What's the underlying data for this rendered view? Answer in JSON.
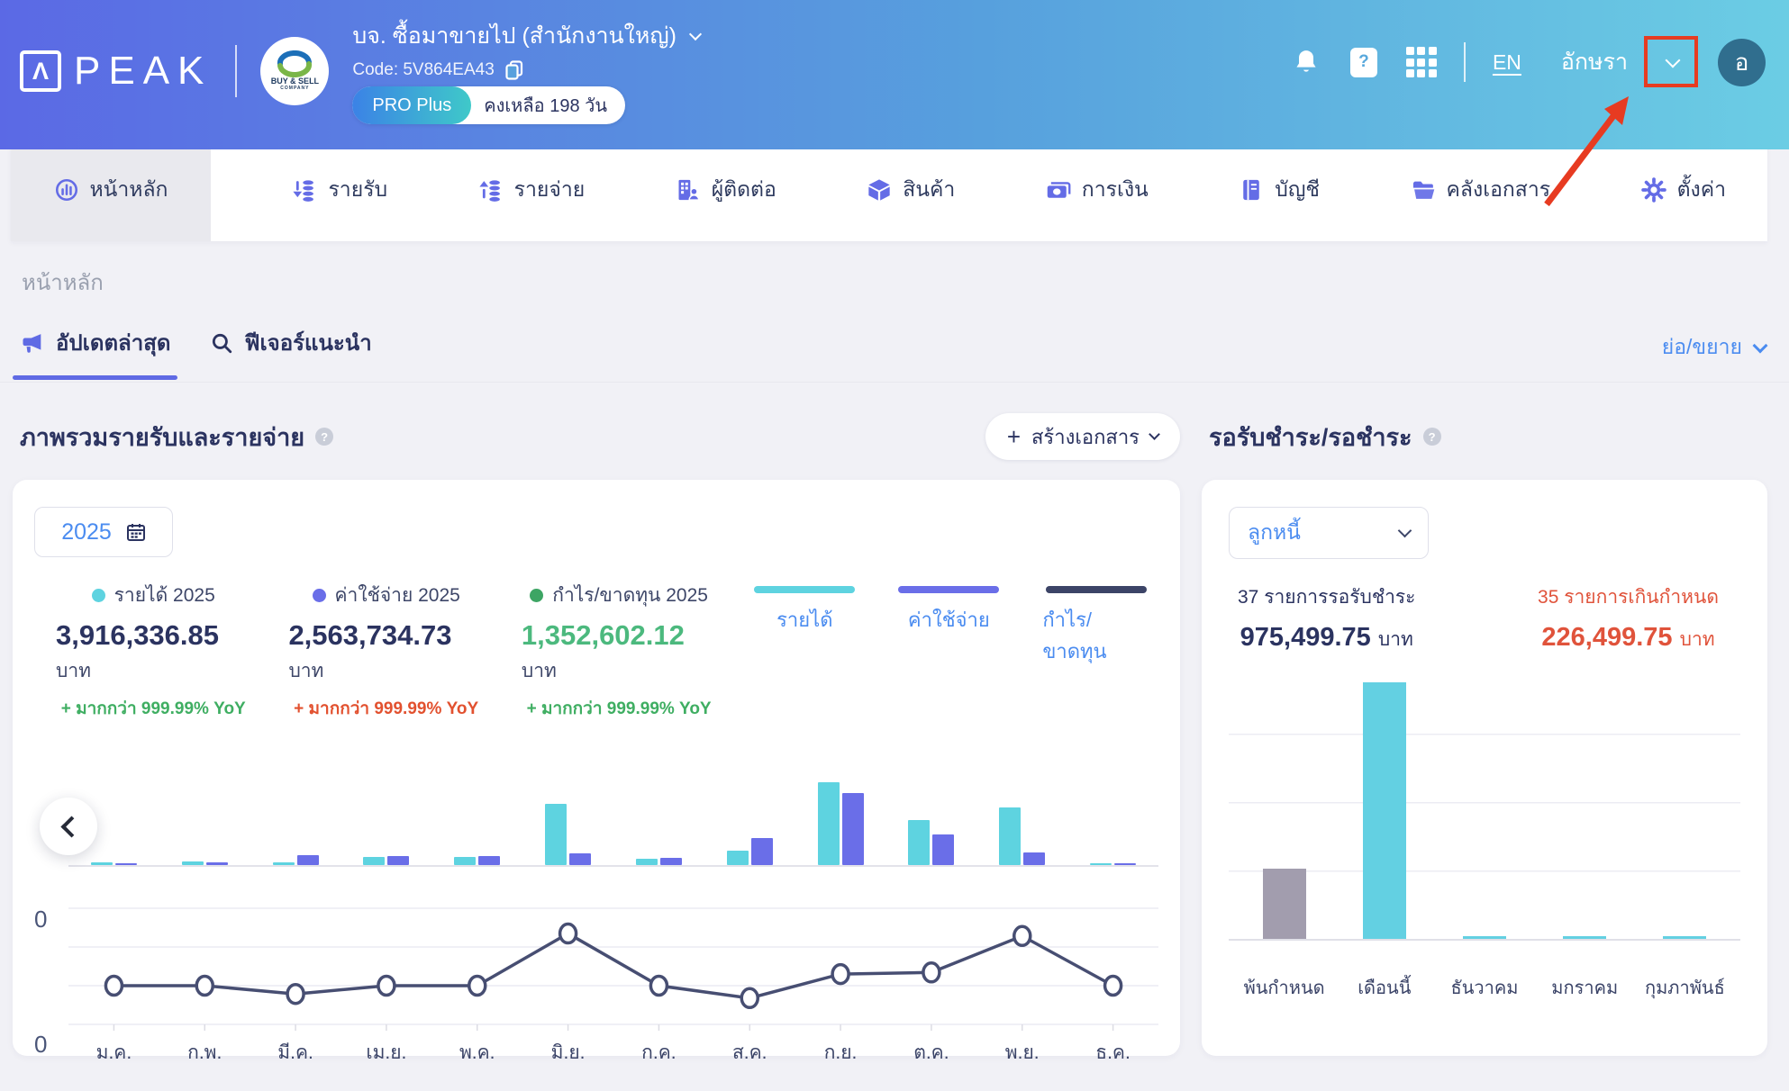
{
  "header": {
    "logo_text": "PEAK",
    "logo_glyph": "Λ",
    "company": {
      "name": "บจ. ซื้อมาขายไป (สำนักงานใหญ่)",
      "code_label": "Code: 5V864EA43",
      "plan_badge": "PRO Plus",
      "plan_remaining": "คงเหลือ 198 วัน",
      "logo_line1": "BUY & SELL",
      "logo_line2": "COMPANY"
    },
    "language": "EN",
    "user_name": "อักษรา",
    "avatar_initial": "อ",
    "annotation": {
      "color": "#e73b21",
      "target": "user-menu-chevron"
    }
  },
  "nav": {
    "items": [
      {
        "label": "หน้าหลัก",
        "icon": "home-chart-icon",
        "active": true
      },
      {
        "label": "รายรับ",
        "icon": "income-coins-icon",
        "active": false
      },
      {
        "label": "รายจ่าย",
        "icon": "expense-coins-icon",
        "active": false
      },
      {
        "label": "ผู้ติดต่อ",
        "icon": "contacts-building-icon",
        "active": false
      },
      {
        "label": "สินค้า",
        "icon": "product-box-icon",
        "active": false
      },
      {
        "label": "การเงิน",
        "icon": "money-banknote-icon",
        "active": false
      },
      {
        "label": "บัญชี",
        "icon": "ledger-book-icon",
        "active": false
      },
      {
        "label": "คลังเอกสาร",
        "icon": "folder-icon",
        "active": false
      },
      {
        "label": "ตั้งค่า",
        "icon": "gear-icon",
        "active": false
      }
    ]
  },
  "breadcrumb": "หน้าหลัก",
  "subtabs": {
    "items": [
      {
        "label": "อัปเดตล่าสุด",
        "icon": "megaphone-icon",
        "active": true
      },
      {
        "label": "ฟีเจอร์แนะนำ",
        "icon": "search-icon",
        "active": false
      }
    ],
    "collapse_label": "ย่อ/ขยาย"
  },
  "overview": {
    "title": "ภาพรวมรายรับและรายจ่าย",
    "create_button": "สร้างเอกสาร",
    "year": "2025",
    "stats": [
      {
        "label": "รายได้ 2025",
        "value": "3,916,336.85",
        "unit": "บาท",
        "yoy": "+ มากกว่า 999.99% YoY",
        "color": "#5ed3e0",
        "value_color": "#2b3360",
        "yoy_color": "#3fae62"
      },
      {
        "label": "ค่าใช้จ่าย 2025",
        "value": "2,563,734.73",
        "unit": "บาท",
        "yoy": "+ มากกว่า 999.99% YoY",
        "color": "#6a6ee8",
        "value_color": "#2b3360",
        "yoy_color": "#e2512f"
      },
      {
        "label": "กำไร/ขาดทุน 2025",
        "value": "1,352,602.12",
        "unit": "บาท",
        "yoy": "+ มากกว่า 999.99% YoY",
        "color": "#3da564",
        "value_color": "#4cb97e",
        "yoy_color": "#3fae62"
      }
    ],
    "legend": [
      {
        "label": "รายได้",
        "color": "#5ed3e0"
      },
      {
        "label": "ค่าใช้จ่าย",
        "color": "#6a6ee8"
      },
      {
        "label": "กำไร/ขาดทุน",
        "color": "#3c4467"
      }
    ],
    "zero_label": "0"
  },
  "receivables": {
    "title": "รอรับชำระ/รอชำระ",
    "filter_value": "ลูกหนี้",
    "pending": {
      "count_label": "37 รายการรอรับชำระ",
      "amount": "975,499.75",
      "unit": "บาท",
      "color": "#2b3360"
    },
    "overdue": {
      "count_label": "35 รายการเกินกำหนด",
      "amount": "226,499.75",
      "unit": "บาท",
      "color": "#e0533b"
    }
  },
  "chart_data": [
    {
      "type": "bar+line",
      "title": "ภาพรวมรายรับและรายจ่าย",
      "categories": [
        "ม.ค.",
        "ก.พ.",
        "มี.ค.",
        "เม.ย.",
        "พ.ค.",
        "มิ.ย.",
        "ก.ค.",
        "ส.ค.",
        "ก.ย.",
        "ต.ค.",
        "พ.ย.",
        "ธ.ค."
      ],
      "y_axis_visible_labels": [
        "0",
        "0"
      ],
      "value_unit": "relative height (chart shows no numeric axis; 100 = tallest bar = ก.ย. รายได้)",
      "series": [
        {
          "name": "รายได้",
          "type": "bar",
          "color": "#5ed3e0",
          "annual_total": "3,916,336.85 บาท",
          "values": [
            3,
            4,
            3,
            10,
            10,
            74,
            8,
            17,
            100,
            54,
            70,
            2
          ]
        },
        {
          "name": "ค่าใช้จ่าย",
          "type": "bar",
          "color": "#6a6ee8",
          "annual_total": "2,563,734.73 บาท",
          "values": [
            2,
            3,
            12,
            11,
            11,
            14,
            9,
            33,
            87,
            37,
            15,
            2
          ]
        },
        {
          "name": "กำไร/ขาดทุน",
          "type": "line",
          "color": "#474e72",
          "annual_total": "1,352,602.12 บาท",
          "values": [
            0,
            0,
            -10,
            0,
            0,
            63,
            0,
            -15,
            14,
            16,
            60,
            0
          ]
        }
      ],
      "grid": true,
      "legend_position": "top-right"
    },
    {
      "type": "bar",
      "title": "รอรับชำระ/รอชำระ (ลูกหนี้)",
      "categories": [
        "พ้นกำหนด",
        "เดือนนี้",
        "ธันวาคม",
        "มกราคม",
        "กุมภาพันธ์"
      ],
      "values": [
        26,
        95,
        1,
        1,
        1
      ],
      "value_unit": "relative height % of plot (no numeric axis labels shown)",
      "bar_colors": [
        "#a29dae",
        "#63d0e2",
        "#63d0e2",
        "#63d0e2",
        "#63d0e2"
      ],
      "grid": true,
      "legend_position": "none"
    }
  ]
}
